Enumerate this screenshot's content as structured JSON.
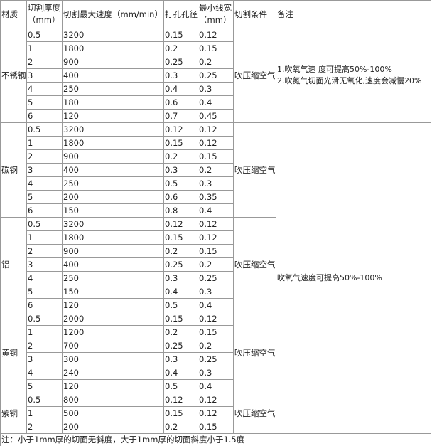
{
  "headers": [
    "材质",
    "切割厚度（mm）",
    "切割最大速度（mm/min）",
    "打孔孔径",
    "最小线宽（mm）",
    "切割条件",
    "备注"
  ],
  "groups": [
    {
      "material": "不锈钢",
      "condition": "吹压缩空气",
      "rows": [
        [
          "0.5",
          "3200",
          "0.15",
          "0.12"
        ],
        [
          "1",
          "1800",
          "0.2",
          "0.15"
        ],
        [
          "2",
          "900",
          "0.25",
          "0.2"
        ],
        [
          "3",
          "400",
          "0.3",
          "0.25"
        ],
        [
          "4",
          "250",
          "0.4",
          "0.3"
        ],
        [
          "5",
          "180",
          "0.6",
          "0.4"
        ],
        [
          "6",
          "120",
          "0.7",
          "0.45"
        ]
      ]
    },
    {
      "material": "碳钢",
      "condition": "吹压缩空气",
      "rows": [
        [
          "0.5",
          "3200",
          "0.12",
          "0.12"
        ],
        [
          "1",
          "1800",
          "0.15",
          "0.12"
        ],
        [
          "2",
          "900",
          "0.2",
          "0.15"
        ],
        [
          "3",
          "400",
          "0.3",
          "0.2"
        ],
        [
          "4",
          "250",
          "0.5",
          "0.3"
        ],
        [
          "5",
          "200",
          "0.6",
          "0.35"
        ],
        [
          "6",
          "150",
          "0.8",
          "0.4"
        ]
      ]
    },
    {
      "material": "铝",
      "condition": "吹压缩空气",
      "rows": [
        [
          "0.5",
          "3200",
          "0.12",
          "0.12"
        ],
        [
          "1",
          "1800",
          "0.15",
          "0.12"
        ],
        [
          "2",
          "900",
          "0.2",
          "0.15"
        ],
        [
          "3",
          "400",
          "0.25",
          "0.2"
        ],
        [
          "4",
          "250",
          "0.3",
          "0.25"
        ],
        [
          "5",
          "150",
          "0.4",
          "0.3"
        ],
        [
          "6",
          "120",
          "0.5",
          "0.4"
        ]
      ]
    },
    {
      "material": "黄铜",
      "condition": "吹压缩空气",
      "rows": [
        [
          "0.5",
          "2000",
          "0.15",
          "0.12"
        ],
        [
          "1",
          "1200",
          "0.2",
          "0.15"
        ],
        [
          "2",
          "700",
          "0.25",
          "0.2"
        ],
        [
          "3",
          "300",
          "0.3",
          "0.25"
        ],
        [
          "4",
          "240",
          "0.4",
          "0.3"
        ],
        [
          "5",
          "120",
          "0.5",
          "0.4"
        ]
      ]
    },
    {
      "material": "紫铜",
      "condition": "吹压缩空气",
      "rows": [
        [
          "0.5",
          "800",
          "0.12",
          "0.12"
        ],
        [
          "1",
          "500",
          "0.15",
          "0.12"
        ],
        [
          "2",
          "200",
          "0.2",
          "0.15"
        ]
      ]
    }
  ],
  "remarks": [
    {
      "span_groups": 1,
      "lines": [
        "1.吹氧气速 度可提高50%-100%",
        "2.吹氮气切面光滑无氧化,速度会减慢20%"
      ]
    },
    {
      "span_groups": 4,
      "lines": [
        "吹氧气速度可提高50%-100%"
      ]
    }
  ],
  "note": "注：小于1mm厚的切面无斜度，大于1mm厚的切面斜度小于1.5度"
}
